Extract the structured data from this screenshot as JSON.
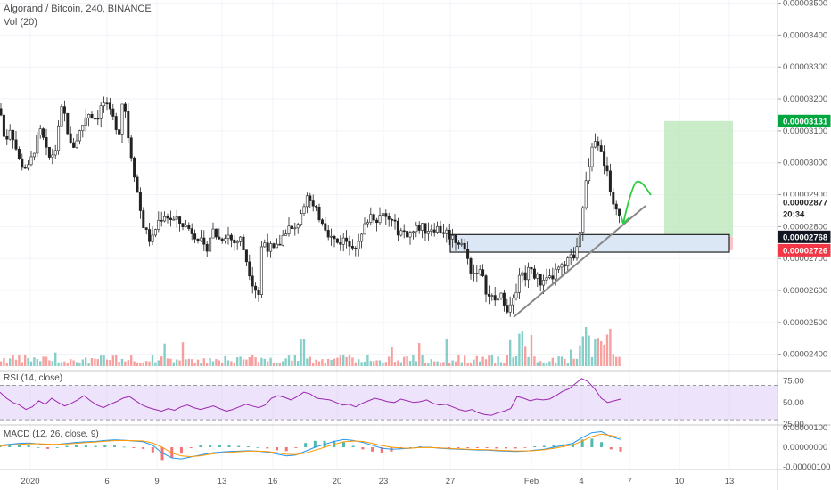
{
  "header": {
    "title": "Algorand / Bitcoin, 240, BINANCE",
    "vol_label": "Vol (20)"
  },
  "colors": {
    "up": "#26a69a",
    "down": "#ef5350",
    "candle": "#222222",
    "rsi": "#9c27b0",
    "rsi_band": "#e1d0f7",
    "macd": "#2196f3",
    "signal": "#ff9800",
    "profit": "#b8e6b5",
    "loss": "#f6b8bb",
    "zone": "#dbe7f5",
    "arrow": "#2ecc40",
    "trend": "#888888"
  },
  "chart_data": [
    {
      "type": "candlestick",
      "title": "Algorand / Bitcoin, 240, BINANCE",
      "x_ticks": [
        "2020",
        "6",
        "9",
        "13",
        "16",
        "20",
        "23",
        "27",
        "Feb",
        "4",
        "7",
        "10",
        "13"
      ],
      "y_ticks": [
        "0.00003500",
        "0.00003400",
        "0.00003300",
        "0.00003200",
        "0.00003100",
        "0.00003000",
        "0.00002900",
        "0.00002800",
        "0.00002700",
        "0.00002600",
        "0.00002500",
        "0.00002400"
      ],
      "ylim": [
        2.36e-05,
        3.51e-05
      ],
      "price_tags": [
        {
          "label": "0.00003131",
          "value": 3.131e-05,
          "style": "green"
        },
        {
          "label": "0.00002877",
          "value": 2.877e-05,
          "style": "plain"
        },
        {
          "label": "20:34",
          "value": 2.84e-05,
          "style": "plain"
        },
        {
          "label": "0.00002768",
          "value": 2.768e-05,
          "style": "black"
        },
        {
          "label": "0.00002726",
          "value": 2.726e-05,
          "style": "red"
        }
      ],
      "series_path": [
        [
          0,
          3.17e-05
        ],
        [
          6,
          3.05e-05
        ],
        [
          10,
          3.12e-05
        ],
        [
          14,
          3.09e-05
        ],
        [
          22,
          3e-05
        ],
        [
          32,
          2.98e-05
        ],
        [
          40,
          3.06e-05
        ],
        [
          46,
          3.1e-05
        ],
        [
          54,
          3.01e-05
        ],
        [
          62,
          3.04e-05
        ],
        [
          70,
          3.18e-05
        ],
        [
          76,
          3.1e-05
        ],
        [
          80,
          3.04e-05
        ],
        [
          90,
          3.1e-05
        ],
        [
          98,
          3.16e-05
        ],
        [
          108,
          3.14e-05
        ],
        [
          116,
          3.19e-05
        ],
        [
          126,
          3.14e-05
        ],
        [
          134,
          3.1e-05
        ],
        [
          138,
          3.22e-05
        ],
        [
          144,
          3.08e-05
        ],
        [
          150,
          2.98e-05
        ],
        [
          156,
          2.87e-05
        ],
        [
          162,
          2.79e-05
        ],
        [
          170,
          2.75e-05
        ],
        [
          176,
          2.81e-05
        ],
        [
          184,
          2.84e-05
        ],
        [
          194,
          2.82e-05
        ],
        [
          204,
          2.81e-05
        ],
        [
          214,
          2.79e-05
        ],
        [
          222,
          2.77e-05
        ],
        [
          230,
          2.72e-05
        ],
        [
          238,
          2.79e-05
        ],
        [
          246,
          2.76e-05
        ],
        [
          254,
          2.78e-05
        ],
        [
          262,
          2.75e-05
        ],
        [
          270,
          2.76e-05
        ],
        [
          278,
          2.68e-05
        ],
        [
          284,
          2.62e-05
        ],
        [
          290,
          2.59e-05
        ],
        [
          294,
          2.76e-05
        ],
        [
          300,
          2.74e-05
        ],
        [
          308,
          2.72e-05
        ],
        [
          314,
          2.75e-05
        ],
        [
          322,
          2.8e-05
        ],
        [
          330,
          2.78e-05
        ],
        [
          338,
          2.85e-05
        ],
        [
          344,
          2.91e-05
        ],
        [
          350,
          2.86e-05
        ],
        [
          356,
          2.84e-05
        ],
        [
          362,
          2.82e-05
        ],
        [
          370,
          2.77e-05
        ],
        [
          378,
          2.75e-05
        ],
        [
          386,
          2.76e-05
        ],
        [
          394,
          2.75e-05
        ],
        [
          402,
          2.74e-05
        ],
        [
          408,
          2.79e-05
        ],
        [
          414,
          2.84e-05
        ],
        [
          422,
          2.83e-05
        ],
        [
          430,
          2.83e-05
        ],
        [
          438,
          2.82e-05
        ],
        [
          446,
          2.79e-05
        ],
        [
          454,
          2.78e-05
        ],
        [
          462,
          2.78e-05
        ],
        [
          470,
          2.8e-05
        ],
        [
          478,
          2.79e-05
        ],
        [
          486,
          2.8e-05
        ],
        [
          494,
          2.79e-05
        ],
        [
          502,
          2.78e-05
        ],
        [
          510,
          2.76e-05
        ],
        [
          518,
          2.75e-05
        ],
        [
          524,
          2.7e-05
        ],
        [
          530,
          2.65e-05
        ],
        [
          536,
          2.67e-05
        ],
        [
          542,
          2.63e-05
        ],
        [
          548,
          2.58e-05
        ],
        [
          556,
          2.57e-05
        ],
        [
          564,
          2.58e-05
        ],
        [
          570,
          2.54e-05
        ],
        [
          576,
          2.56e-05
        ],
        [
          582,
          2.66e-05
        ],
        [
          588,
          2.64e-05
        ],
        [
          594,
          2.68e-05
        ],
        [
          600,
          2.65e-05
        ],
        [
          608,
          2.62e-05
        ],
        [
          616,
          2.63e-05
        ],
        [
          624,
          2.66e-05
        ],
        [
          632,
          2.67e-05
        ],
        [
          640,
          2.7e-05
        ],
        [
          646,
          2.72e-05
        ],
        [
          652,
          2.82e-05
        ],
        [
          658,
          2.95e-05
        ],
        [
          664,
          3.04e-05
        ],
        [
          668,
          3.09e-05
        ],
        [
          672,
          3.03e-05
        ],
        [
          678,
          3e-05
        ],
        [
          684,
          2.93e-05
        ],
        [
          690,
          2.85e-05
        ],
        [
          696,
          2.82e-05
        ]
      ]
    },
    {
      "type": "line",
      "title": "RSI (14, close)",
      "y_ticks": [
        "75.00",
        "50.00",
        "25.00"
      ],
      "ylim": [
        25,
        85
      ],
      "band": [
        30,
        70
      ],
      "series": [
        {
          "values": [
            62,
            55,
            50,
            47,
            42,
            45,
            52,
            48,
            55,
            50,
            46,
            49,
            53,
            58,
            52,
            47,
            44,
            48,
            51,
            55,
            57,
            52,
            47,
            44,
            42,
            40,
            43,
            41,
            45,
            47,
            44,
            42,
            44,
            46,
            43,
            40,
            42,
            45,
            48,
            46,
            44,
            47,
            55,
            58,
            56,
            53,
            57,
            62,
            60,
            55,
            54,
            53,
            50,
            47,
            48,
            45,
            49,
            52,
            55,
            53,
            51,
            50,
            54,
            52,
            50,
            51,
            53,
            49,
            47,
            48,
            45,
            42,
            40,
            42,
            38,
            36,
            35,
            38,
            40,
            43,
            57,
            55,
            52,
            54,
            53,
            54,
            58,
            63,
            66,
            72,
            78,
            74,
            66,
            55,
            50,
            52,
            54
          ]
        }
      ]
    },
    {
      "type": "line",
      "title": "MACD (12, 26, close, 9)",
      "y_ticks": [
        "0.00000100",
        "0.00000000",
        "-0.00000100"
      ],
      "ylim": [
        -1.1e-06,
        1.1e-06
      ],
      "series": [
        {
          "values": [
            0.1,
            0.15,
            0.2,
            0.22,
            0.18,
            0.12,
            0.15,
            0.2,
            0.25,
            0.28,
            0.3,
            0.35,
            0.38,
            0.36,
            0.32,
            0.28,
            0.1,
            -0.3,
            -0.55,
            -0.6,
            -0.5,
            -0.4,
            -0.3,
            -0.25,
            -0.22,
            -0.2,
            -0.18,
            -0.2,
            -0.25,
            -0.35,
            -0.45,
            -0.4,
            -0.2,
            0.0,
            0.15,
            0.3,
            0.4,
            0.35,
            0.25,
            0.1,
            -0.05,
            -0.1,
            -0.08,
            -0.05,
            0.0,
            0.0,
            -0.05,
            -0.08,
            -0.1,
            -0.12,
            -0.14,
            -0.15,
            -0.18,
            -0.2,
            -0.22,
            -0.2,
            -0.15,
            -0.1,
            0.0,
            0.1,
            0.2,
            0.5,
            0.75,
            0.8,
            0.55,
            0.4
          ]
        },
        {
          "values": [
            0.05,
            0.1,
            0.15,
            0.18,
            0.18,
            0.16,
            0.15,
            0.17,
            0.2,
            0.24,
            0.27,
            0.31,
            0.34,
            0.35,
            0.34,
            0.32,
            0.22,
            0.0,
            -0.3,
            -0.45,
            -0.48,
            -0.44,
            -0.36,
            -0.3,
            -0.26,
            -0.23,
            -0.2,
            -0.2,
            -0.22,
            -0.28,
            -0.36,
            -0.38,
            -0.3,
            -0.15,
            0.0,
            0.15,
            0.28,
            0.32,
            0.3,
            0.2,
            0.08,
            0.0,
            -0.04,
            -0.05,
            -0.02,
            -0.01,
            -0.03,
            -0.06,
            -0.08,
            -0.1,
            -0.12,
            -0.13,
            -0.15,
            -0.17,
            -0.19,
            -0.19,
            -0.17,
            -0.13,
            -0.06,
            0.03,
            0.12,
            0.32,
            0.55,
            0.68,
            0.6,
            0.5
          ]
        }
      ]
    }
  ]
}
